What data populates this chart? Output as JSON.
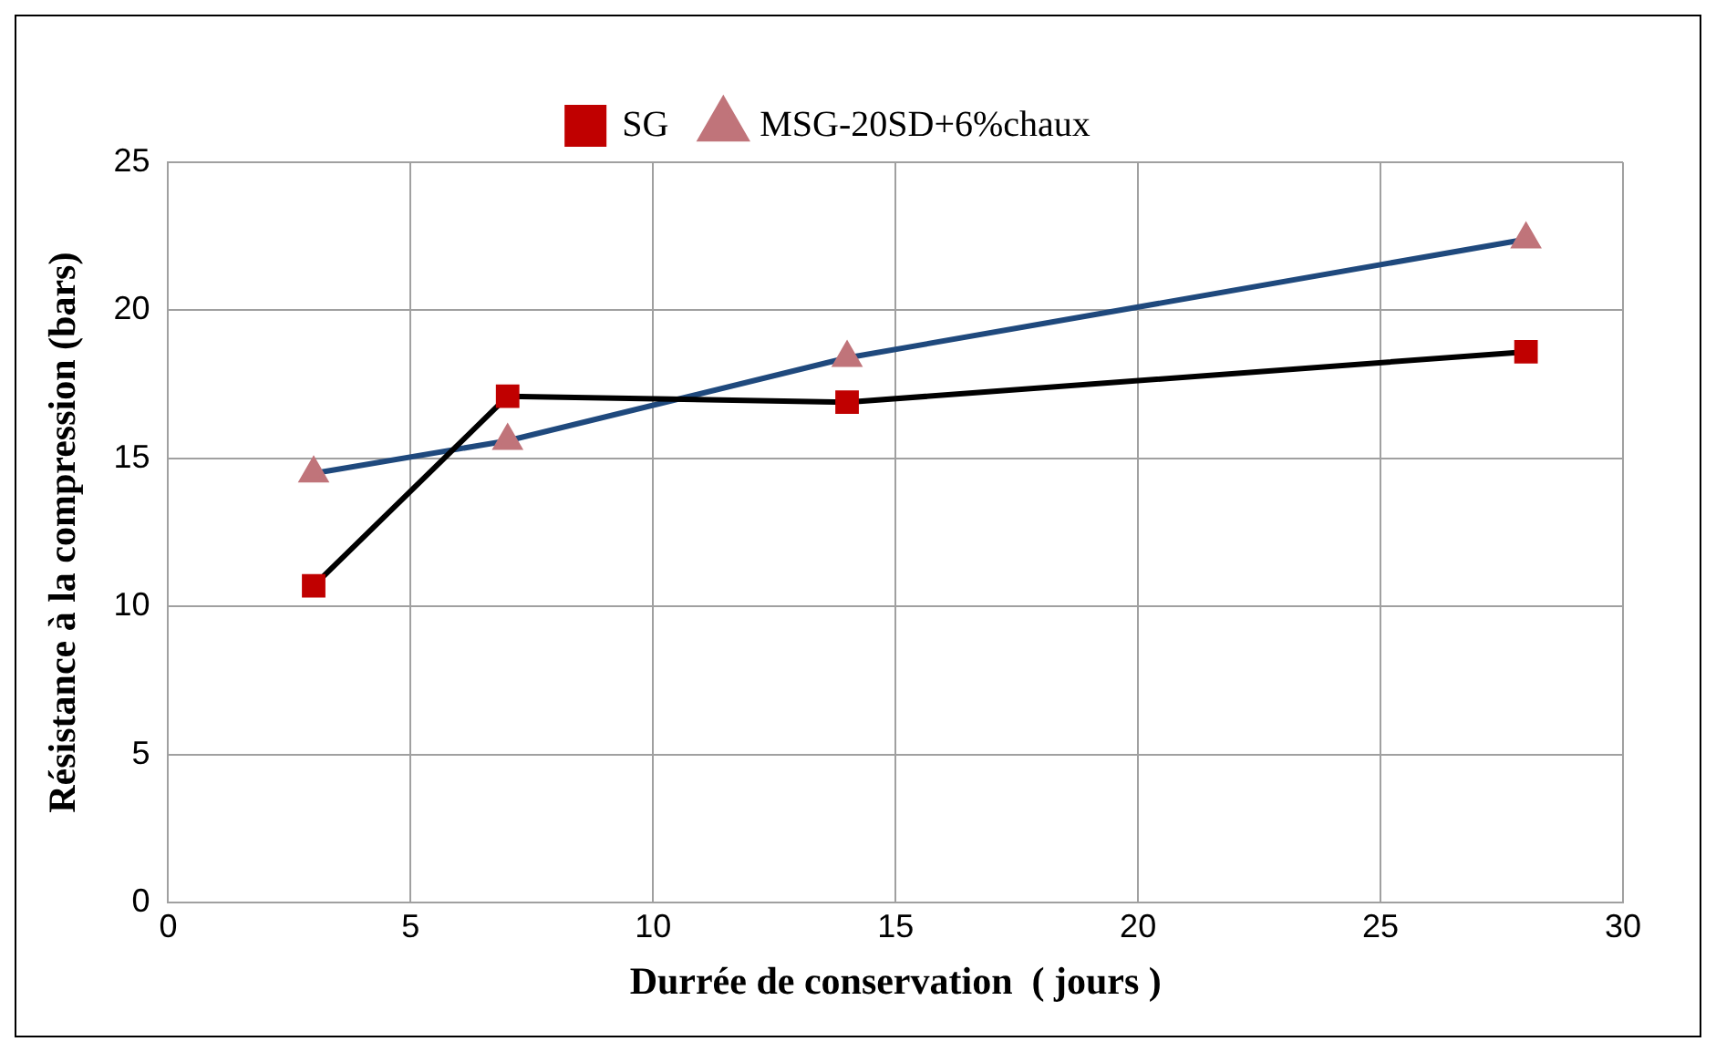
{
  "chart_data": {
    "type": "line",
    "xlabel": "Durrée de conservation  ( jours )",
    "ylabel": "Résistance à la compression (bars)",
    "x": [
      3,
      7,
      14,
      28
    ],
    "series": [
      {
        "name": "SG",
        "color": "#000000",
        "marker": "square",
        "values": [
          10.7,
          17.1,
          16.9,
          18.6
        ]
      },
      {
        "name": "MSG-20SD+6%chaux",
        "color": "#1f497d",
        "marker": "triangle",
        "values": [
          14.5,
          15.6,
          18.4,
          22.4
        ]
      }
    ],
    "xlim": [
      0,
      30
    ],
    "xticks": [
      0,
      5,
      10,
      15,
      20,
      25,
      30
    ],
    "ylim": [
      0,
      25
    ],
    "yticks": [
      0,
      5,
      10,
      15,
      20,
      25
    ],
    "grid": true,
    "legend": "top",
    "line_style": "solid"
  }
}
